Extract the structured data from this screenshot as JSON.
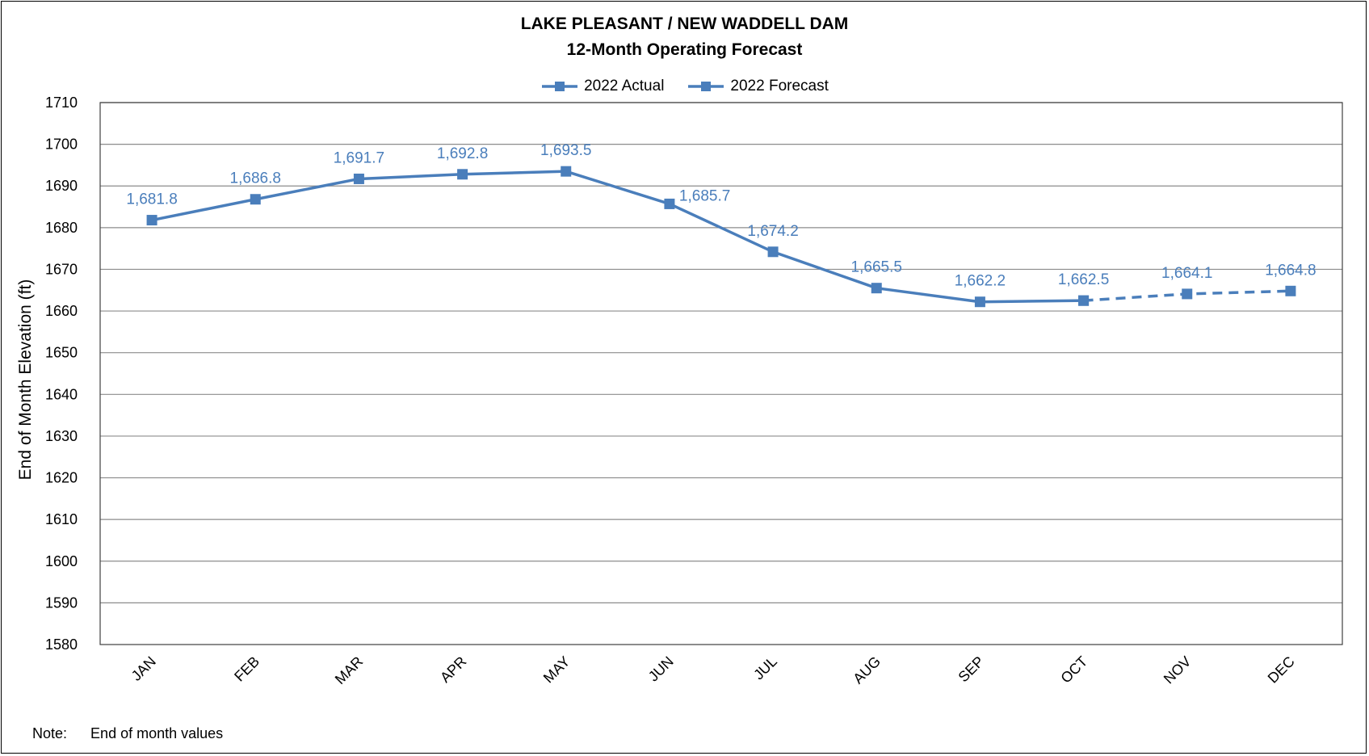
{
  "chart_data": {
    "type": "line",
    "title": "LAKE PLEASANT / NEW WADDELL DAM",
    "subtitle": "12-Month Operating Forecast",
    "xlabel": "",
    "ylabel": "End of Month Elevation (ft)",
    "ylim": [
      1580,
      1710
    ],
    "yticks": [
      "1580",
      "1590",
      "1600",
      "1610",
      "1620",
      "1630",
      "1640",
      "1650",
      "1660",
      "1670",
      "1680",
      "1690",
      "1700",
      "1710"
    ],
    "categories": [
      "JAN",
      "FEB",
      "MAR",
      "APR",
      "MAY",
      "JUN",
      "JUL",
      "AUG",
      "SEP",
      "OCT",
      "NOV",
      "DEC"
    ],
    "grid": true,
    "legend_position": "top-center",
    "series": [
      {
        "name": "2022 Actual",
        "style": "solid",
        "color": "#4a7ebb",
        "x": [
          "JAN",
          "FEB",
          "MAR",
          "APR",
          "MAY",
          "JUN",
          "JUL",
          "AUG",
          "SEP",
          "OCT"
        ],
        "values": [
          1681.8,
          1686.8,
          1691.7,
          1692.8,
          1693.5,
          1685.7,
          1674.2,
          1665.5,
          1662.2,
          1662.5
        ],
        "labels": [
          "1,681.8",
          "1,686.8",
          "1,691.7",
          "1,692.8",
          "1,693.5",
          "1,685.7",
          "1,674.2",
          "1,665.5",
          "1,662.2",
          "1,662.5"
        ]
      },
      {
        "name": "2022 Forecast",
        "style": "dashed",
        "color": "#4a7ebb",
        "x": [
          "OCT",
          "NOV",
          "DEC"
        ],
        "values": [
          1662.5,
          1664.1,
          1664.8
        ],
        "labels": [
          "",
          "1,664.1",
          "1,664.8"
        ]
      }
    ],
    "note_label": "Note:",
    "note_text": "End of month values"
  }
}
